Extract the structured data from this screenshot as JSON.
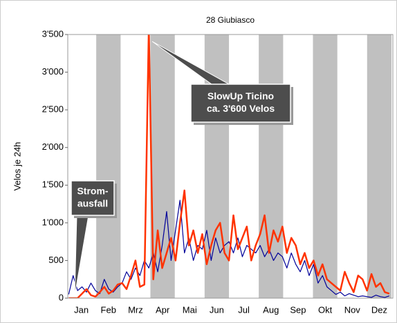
{
  "chart_data": {
    "type": "line",
    "title": "28 Giubiasco",
    "y_label": "Velos je 24h",
    "categories": [
      "Jan",
      "Feb",
      "Mrz",
      "Apr",
      "Mai",
      "Jun",
      "Jul",
      "Aug",
      "Sep",
      "Okt",
      "Nov",
      "Dez"
    ],
    "x": [
      1,
      6,
      11,
      16,
      21,
      26,
      31,
      36,
      41,
      46,
      51,
      56,
      61,
      66,
      71,
      76,
      81,
      86,
      91,
      96,
      101,
      106,
      111,
      116,
      121,
      126,
      131,
      136,
      141,
      146,
      151,
      156,
      161,
      166,
      171,
      176,
      181,
      186,
      191,
      196,
      201,
      206,
      211,
      216,
      221,
      226,
      231,
      236,
      241,
      246,
      251,
      256,
      261,
      266,
      271,
      276,
      281,
      286,
      291,
      296,
      301,
      306,
      311,
      316,
      321,
      326,
      331,
      336,
      341,
      346,
      351,
      356,
      361
    ],
    "xlim": [
      0,
      365
    ],
    "ylim": [
      0,
      3500
    ],
    "yticks": [
      0,
      500,
      {
        "value": 1000,
        "label": "1'000"
      },
      {
        "value": 1500,
        "label": "1'500"
      },
      {
        "value": 2000,
        "label": "2'000"
      },
      {
        "value": 2500,
        "label": "2'500"
      },
      {
        "value": 3000,
        "label": "3'000"
      },
      {
        "value": 3500,
        "label": "3'500"
      }
    ],
    "series": [
      {
        "color": "#000099",
        "values": [
          50,
          300,
          100,
          150,
          80,
          200,
          100,
          60,
          250,
          120,
          80,
          150,
          200,
          350,
          250,
          400,
          300,
          500,
          400,
          600,
          350,
          700,
          1150,
          500,
          900,
          1300,
          600,
          800,
          500,
          700,
          650,
          900,
          500,
          800,
          600,
          700,
          750,
          600,
          800,
          550,
          700,
          650,
          600,
          700,
          550,
          650,
          500,
          600,
          550,
          400,
          600,
          450,
          350,
          500,
          300,
          450,
          200,
          300,
          150,
          100,
          50,
          80,
          30,
          60,
          40,
          20,
          30,
          20,
          10,
          40,
          20,
          10,
          30
        ]
      },
      {
        "color": "#ff3300",
        "values": [
          0,
          0,
          0,
          60,
          120,
          40,
          20,
          80,
          150,
          60,
          100,
          180,
          200,
          120,
          300,
          500,
          150,
          180,
          3600,
          250,
          900,
          400,
          600,
          800,
          500,
          1000,
          1430,
          700,
          900,
          600,
          850,
          450,
          700,
          900,
          1000,
          600,
          500,
          1100,
          650,
          800,
          950,
          500,
          700,
          850,
          1100,
          600,
          900,
          750,
          950,
          600,
          800,
          700,
          450,
          600,
          400,
          500,
          300,
          450,
          250,
          200,
          150,
          100,
          350,
          200,
          80,
          300,
          250,
          100,
          320,
          150,
          200,
          80,
          60
        ]
      }
    ],
    "annotations": [
      {
        "lines": [
          "SlowUp Ticino",
          "ca. 3'600 Velos"
        ]
      },
      {
        "lines": [
          "Strom-",
          "ausfall"
        ]
      }
    ],
    "month_bands": true
  }
}
